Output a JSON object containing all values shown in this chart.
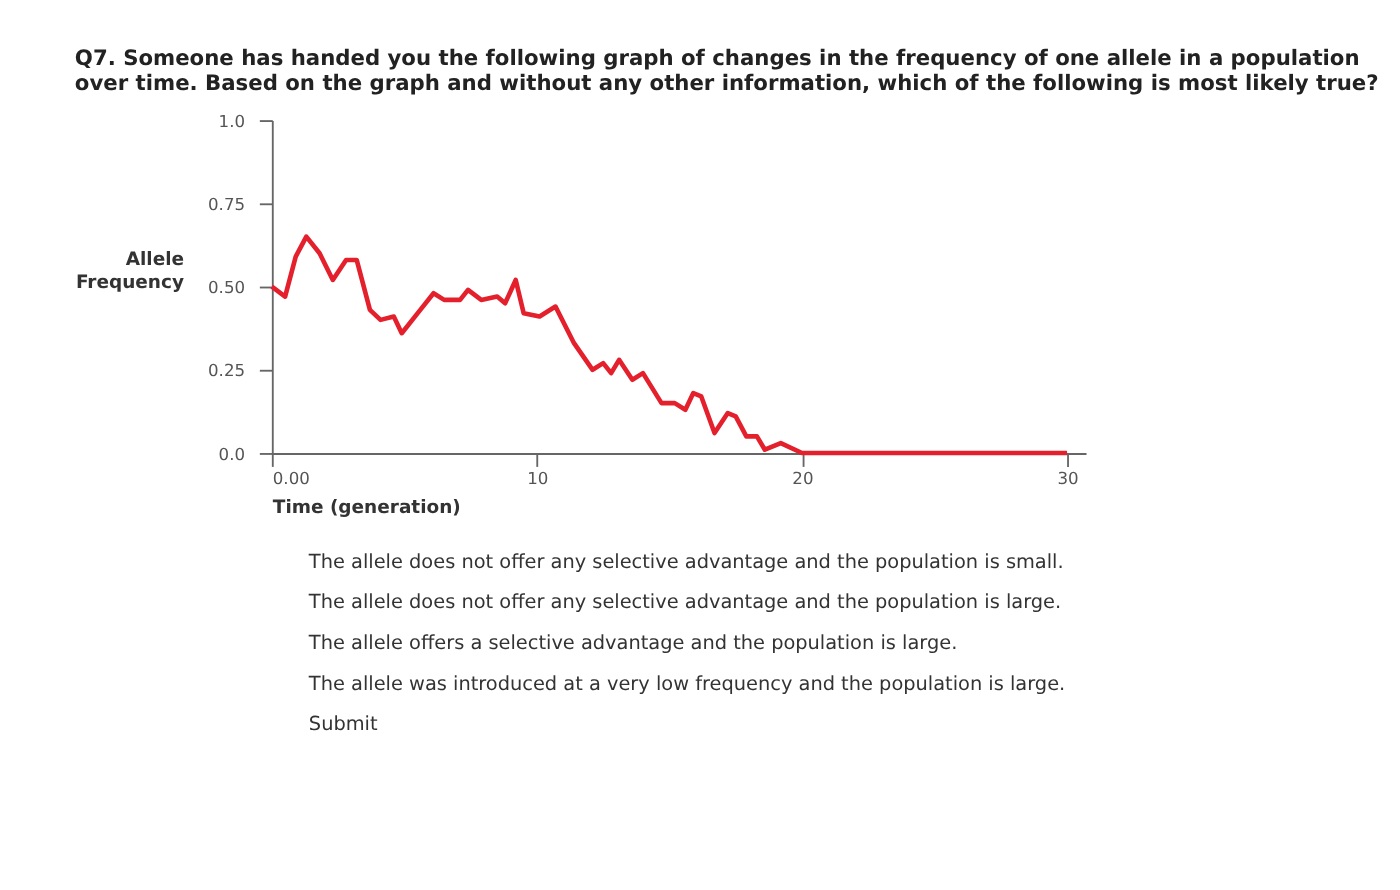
{
  "chart_data": {
    "type": "line",
    "title": "Q7. Someone has handed you the following graph of changes in the frequency of one allele in a population over time. Based on the graph and without any other information, which of the following is most likely true?",
    "xlabel": "Time (generation)",
    "ylabel": "Allele Frequency",
    "x": [
      0,
      0.5,
      0.9,
      1.3,
      1.8,
      2.3,
      2.8,
      3.2,
      3.7,
      4.1,
      4.6,
      4.9,
      5.6,
      6.1,
      6.5,
      7.1,
      7.4,
      7.9,
      8.5,
      8.8,
      9.2,
      9.5,
      10.1,
      10.7,
      11.4,
      12.1,
      12.5,
      12.8,
      13.1,
      13.6,
      14.0,
      14.7,
      15.2,
      15.6,
      15.9,
      16.2,
      16.7,
      17.2,
      17.5,
      17.9,
      18.3,
      18.6,
      19.2,
      20,
      30
    ],
    "series": [
      {
        "color": "#e3202b",
        "values": [
          0.5,
          0.47,
          0.59,
          0.65,
          0.6,
          0.52,
          0.58,
          0.58,
          0.43,
          0.4,
          0.41,
          0.36,
          0.43,
          0.48,
          0.46,
          0.46,
          0.49,
          0.46,
          0.47,
          0.45,
          0.52,
          0.42,
          0.41,
          0.44,
          0.33,
          0.25,
          0.27,
          0.24,
          0.28,
          0.22,
          0.24,
          0.15,
          0.15,
          0.13,
          0.18,
          0.17,
          0.06,
          0.12,
          0.11,
          0.05,
          0.05,
          0.01,
          0.03,
          0,
          0
        ]
      }
    ],
    "xlim": [
      0,
      30.7
    ],
    "ylim": [
      0,
      1.0
    ],
    "xticks": [
      {
        "value": 0,
        "label": "0.00"
      },
      10,
      20,
      30
    ],
    "yticks": [
      {
        "value": 0,
        "label": "0.0"
      },
      0.25,
      {
        "value": 0.5,
        "label": "0.50"
      },
      0.75,
      {
        "value": 1.0,
        "label": "1.0"
      }
    ],
    "grid": false,
    "marker": "none",
    "line_style": "solid",
    "annotations": [
      "The allele does not offer any selective advantage and the population is small.",
      "The allele does not offer any selective advantage and the population is large.",
      "The allele offers a selective advantage and the population is large.",
      "The allele was introduced at a very low frequency and the population is large.",
      "Submit"
    ]
  }
}
